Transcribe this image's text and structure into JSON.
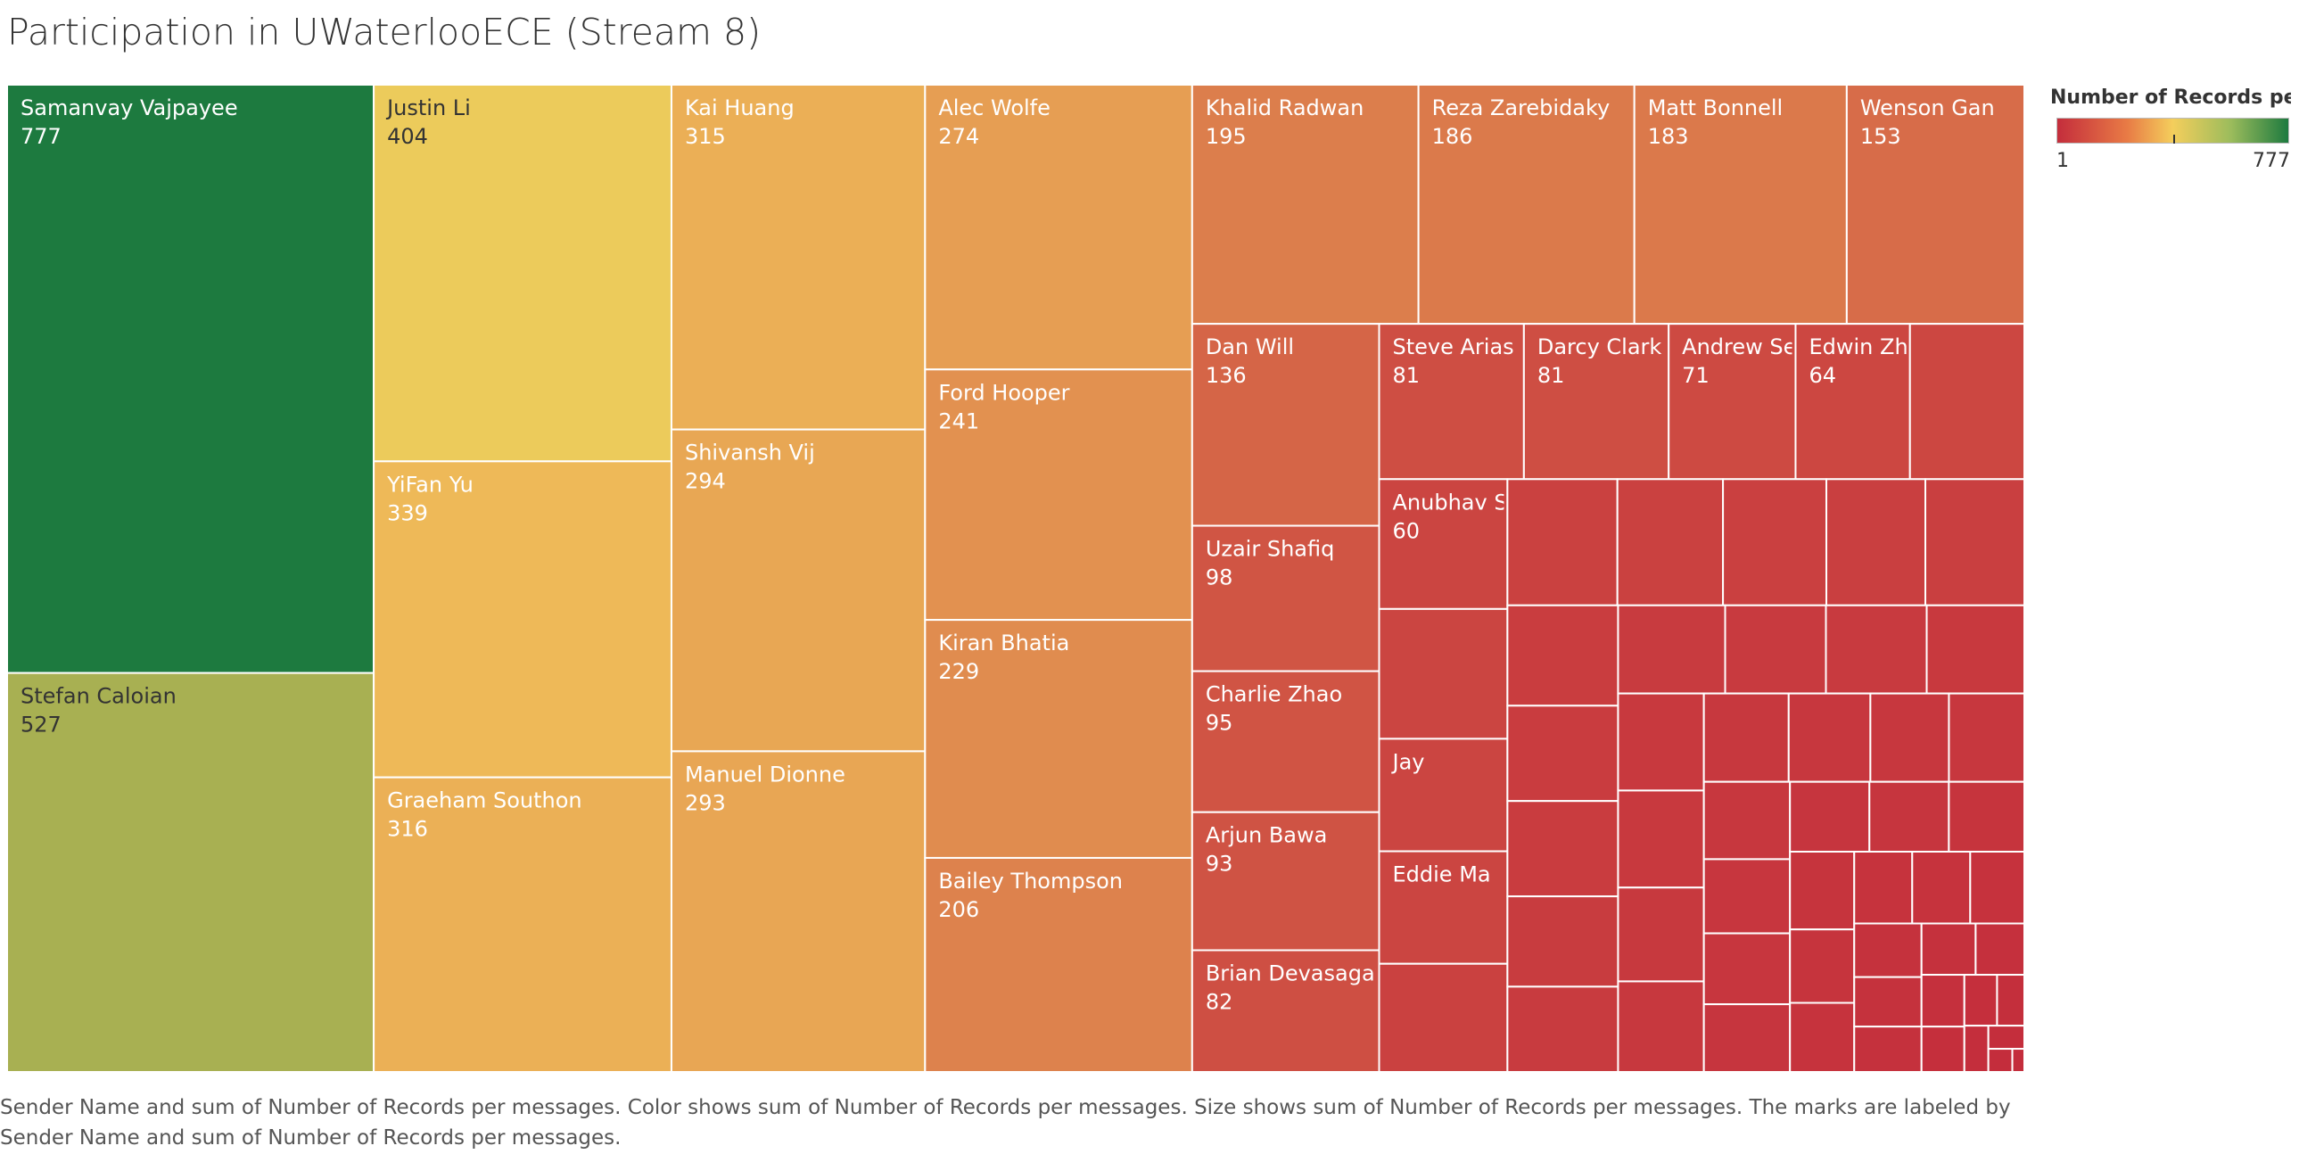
{
  "chart_data": {
    "type": "treemap",
    "title": "Participation in UWaterlooECE (Stream 8)",
    "color_legend": {
      "title": "Number of Records per ..",
      "min_label": "1",
      "max_label": "777",
      "min": 1,
      "max": 777,
      "colors": [
        "#c42d3c",
        "#f4ce5c",
        "#1d7a3f"
      ]
    },
    "caption": "Sender Name and sum of Number of Records per messages.  Color shows sum of Number of Records per messages.  Size shows sum of Number of Records per messages.  The marks are labeled by Sender Name and sum of Number of Records per messages.",
    "labeled": [
      {
        "name": "Samanvay Vajpayee",
        "value": 777
      },
      {
        "name": "Stefan Caloian",
        "value": 527
      },
      {
        "name": "Justin Li",
        "value": 404
      },
      {
        "name": "YiFan Yu",
        "value": 339
      },
      {
        "name": "Graeham Southon",
        "value": 316
      },
      {
        "name": "Kai Huang",
        "value": 315
      },
      {
        "name": "Shivansh Vij",
        "value": 294
      },
      {
        "name": "Manuel Dionne",
        "value": 293
      },
      {
        "name": "Alec Wolfe",
        "value": 274
      },
      {
        "name": "Ford Hooper",
        "value": 241
      },
      {
        "name": "Kiran Bhatia",
        "value": 229
      },
      {
        "name": "Bailey Thompson",
        "value": 206
      },
      {
        "name": "Khalid Radwan",
        "value": 195
      },
      {
        "name": "Reza Zarebidaky",
        "value": 186
      },
      {
        "name": "Matt Bonnell",
        "value": 183
      },
      {
        "name": "Wenson Gan",
        "value": 153
      },
      {
        "name": "Dan Will",
        "value": 136
      },
      {
        "name": "Steve Arias",
        "value": 81
      },
      {
        "name": "Andrew Seto",
        "value": 71
      },
      {
        "name": "Jay",
        "value": null
      },
      {
        "name": "Edwin Zhang",
        "value": 64
      },
      {
        "name": "Uzair Shafiq",
        "value": 98
      },
      {
        "name": "Charlie Zhao",
        "value": 95
      },
      {
        "name": "Arjun Bawa",
        "value": 93
      },
      {
        "name": "Brian Devasagayam",
        "value": 82
      },
      {
        "name": "Darcy Clark",
        "value": 81
      },
      {
        "name": "Anubhav Saini",
        "value": 60
      },
      {
        "name": "Eddie Ma",
        "value": null
      }
    ],
    "unlabeled_estimates": [
      64,
      60,
      50,
      50,
      48,
      47,
      45,
      45,
      40,
      38,
      38,
      36,
      34,
      34,
      32,
      32,
      31,
      30,
      30,
      29,
      28,
      27,
      26,
      25,
      24,
      24,
      23,
      22,
      21,
      20,
      20,
      19,
      18,
      17,
      16,
      15,
      15,
      14,
      13,
      12,
      11,
      10,
      9,
      8,
      7,
      6,
      5,
      4,
      3,
      2,
      1
    ]
  }
}
